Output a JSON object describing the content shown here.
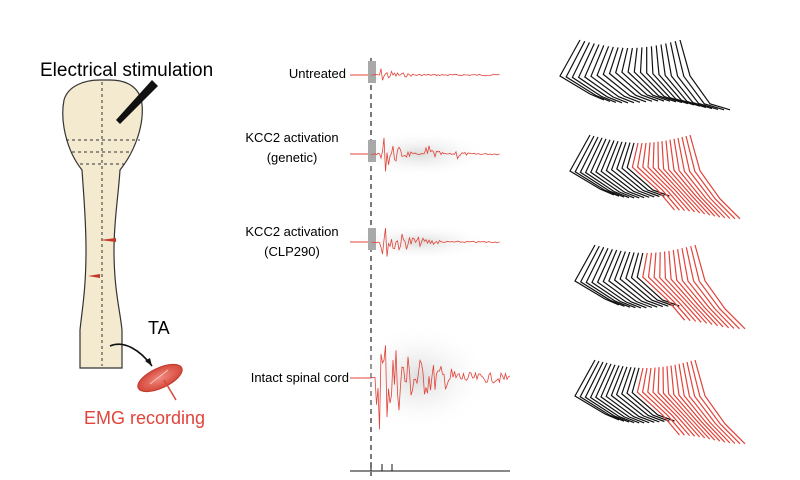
{
  "labels": {
    "stimulation": "Electrical stimulation",
    "muscle": "TA",
    "recording": "EMG recording"
  },
  "conditions": [
    {
      "line1": "Untreated",
      "line2": ""
    },
    {
      "line1": "KCC2 activation",
      "line2": "(genetic)"
    },
    {
      "line1": "KCC2 activation",
      "line2": "(CLP290)"
    },
    {
      "line1": "Intact spinal cord",
      "line2": ""
    }
  ],
  "colors": {
    "black": "#111111",
    "red": "#e0443a",
    "cord_fill": "#f3ead0",
    "stim_bar": "#a9a9a9"
  },
  "icons": [
    "electrode-icon",
    "muscle-icon",
    "stimulation-artifact-icon",
    "hindlimb-stick-diagram-icon"
  ]
}
